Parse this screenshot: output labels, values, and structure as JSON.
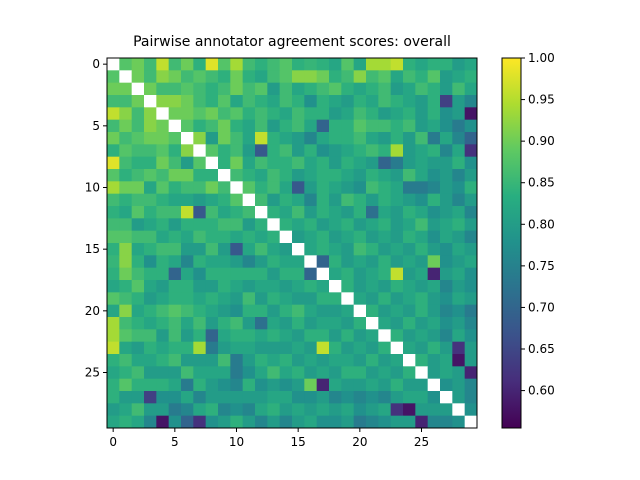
{
  "chart_data": {
    "type": "heatmap",
    "title": "Pairwise annotator agreement scores: overall",
    "xlabel": "",
    "ylabel": "",
    "size": 30,
    "x_ticks": [
      0,
      5,
      10,
      15,
      20,
      25
    ],
    "y_ticks": [
      0,
      5,
      10,
      15,
      20,
      25
    ],
    "colormap": "viridis",
    "color_range": [
      0.555,
      1.0
    ],
    "colorbar_ticks": [
      0.6,
      0.65,
      0.7,
      0.75,
      0.8,
      0.85,
      0.9,
      0.95,
      1.0
    ],
    "colorbar_tick_labels": [
      "0.60",
      "0.65",
      "0.70",
      "0.75",
      "0.80",
      "0.85",
      "0.90",
      "0.95",
      "1.00"
    ],
    "diagonal": "missing",
    "grid": false,
    "values": [
      [
        null,
        0.88,
        0.9,
        0.86,
        0.96,
        0.86,
        0.9,
        0.84,
        0.98,
        0.88,
        0.94,
        0.86,
        0.84,
        0.86,
        0.88,
        0.84,
        0.85,
        0.84,
        0.82,
        0.88,
        0.82,
        0.94,
        0.94,
        0.96,
        0.84,
        0.82,
        0.84,
        0.84,
        0.8,
        0.82
      ],
      [
        0.88,
        null,
        0.9,
        0.86,
        0.92,
        0.9,
        0.86,
        0.88,
        0.86,
        0.84,
        0.9,
        0.84,
        0.82,
        0.86,
        0.88,
        0.92,
        0.92,
        0.9,
        0.84,
        0.86,
        0.92,
        0.86,
        0.88,
        0.82,
        0.86,
        0.84,
        0.88,
        0.8,
        0.82,
        0.84
      ],
      [
        0.9,
        0.9,
        null,
        0.9,
        0.86,
        0.86,
        0.88,
        0.86,
        0.84,
        0.86,
        0.9,
        0.86,
        0.88,
        0.8,
        0.86,
        0.82,
        0.84,
        0.86,
        0.88,
        0.84,
        0.82,
        0.84,
        0.86,
        0.8,
        0.82,
        0.86,
        0.84,
        0.8,
        0.86,
        0.82
      ],
      [
        0.86,
        0.86,
        0.9,
        null,
        0.92,
        0.92,
        0.9,
        0.86,
        0.84,
        0.88,
        0.82,
        0.86,
        0.84,
        0.82,
        0.86,
        0.84,
        0.78,
        0.84,
        0.82,
        0.8,
        0.84,
        0.82,
        0.86,
        0.84,
        0.82,
        0.8,
        0.84,
        0.64,
        0.8,
        0.76
      ],
      [
        0.96,
        0.92,
        0.86,
        0.92,
        null,
        0.9,
        0.9,
        0.88,
        0.9,
        0.86,
        0.88,
        0.84,
        0.86,
        0.84,
        0.82,
        0.86,
        0.84,
        0.84,
        0.8,
        0.82,
        0.86,
        0.84,
        0.8,
        0.82,
        0.84,
        0.8,
        0.84,
        0.78,
        0.8,
        0.58
      ],
      [
        0.86,
        0.9,
        0.86,
        0.92,
        0.9,
        null,
        0.88,
        0.84,
        0.86,
        0.9,
        0.84,
        0.82,
        0.86,
        0.8,
        0.84,
        0.86,
        0.82,
        0.7,
        0.84,
        0.84,
        0.88,
        0.86,
        0.86,
        0.84,
        0.86,
        0.8,
        0.82,
        0.78,
        0.74,
        0.78
      ],
      [
        0.9,
        0.86,
        0.88,
        0.9,
        0.9,
        0.88,
        null,
        0.92,
        0.8,
        0.9,
        0.86,
        0.82,
        0.96,
        0.84,
        0.82,
        0.8,
        0.76,
        0.82,
        0.84,
        0.84,
        0.86,
        0.82,
        0.8,
        0.84,
        0.8,
        0.86,
        0.74,
        0.82,
        0.76,
        0.7
      ],
      [
        0.84,
        0.88,
        0.86,
        0.86,
        0.88,
        0.84,
        0.92,
        null,
        0.88,
        0.84,
        0.86,
        0.8,
        0.68,
        0.84,
        0.86,
        0.8,
        0.84,
        0.78,
        0.8,
        0.82,
        0.84,
        0.86,
        0.84,
        0.94,
        0.8,
        0.82,
        0.84,
        0.76,
        0.82,
        0.62
      ],
      [
        0.98,
        0.86,
        0.84,
        0.84,
        0.9,
        0.86,
        0.8,
        0.88,
        null,
        0.84,
        0.9,
        0.82,
        0.86,
        0.84,
        0.84,
        0.86,
        0.82,
        0.84,
        0.8,
        0.84,
        0.82,
        0.8,
        0.7,
        0.74,
        0.8,
        0.82,
        0.8,
        0.8,
        0.84,
        0.78
      ],
      [
        0.88,
        0.84,
        0.86,
        0.88,
        0.86,
        0.9,
        0.9,
        0.84,
        0.84,
        null,
        0.86,
        0.84,
        0.82,
        0.86,
        0.84,
        0.8,
        0.82,
        0.84,
        0.84,
        0.82,
        0.8,
        0.84,
        0.82,
        0.8,
        0.86,
        0.82,
        0.78,
        0.8,
        0.76,
        0.8
      ],
      [
        0.94,
        0.9,
        0.9,
        0.82,
        0.88,
        0.84,
        0.86,
        0.86,
        0.9,
        0.86,
        null,
        0.88,
        0.84,
        0.86,
        0.82,
        0.68,
        0.8,
        0.84,
        0.82,
        0.8,
        0.78,
        0.86,
        0.84,
        0.82,
        0.74,
        0.74,
        0.76,
        0.8,
        0.78,
        0.84
      ],
      [
        0.86,
        0.84,
        0.86,
        0.86,
        0.84,
        0.82,
        0.82,
        0.8,
        0.82,
        0.84,
        0.88,
        null,
        0.86,
        0.8,
        0.84,
        0.82,
        0.76,
        0.84,
        0.8,
        0.86,
        0.84,
        0.8,
        0.84,
        0.82,
        0.8,
        0.78,
        0.84,
        0.8,
        0.76,
        0.8
      ],
      [
        0.84,
        0.82,
        0.88,
        0.84,
        0.86,
        0.86,
        0.96,
        0.68,
        0.86,
        0.82,
        0.84,
        0.86,
        null,
        0.84,
        0.82,
        0.86,
        0.8,
        0.84,
        0.82,
        0.8,
        0.84,
        0.72,
        0.82,
        0.8,
        0.84,
        0.82,
        0.78,
        0.8,
        0.82,
        0.76
      ],
      [
        0.86,
        0.86,
        0.8,
        0.82,
        0.84,
        0.8,
        0.84,
        0.84,
        0.84,
        0.86,
        0.86,
        0.8,
        0.84,
        null,
        0.84,
        0.82,
        0.84,
        0.8,
        0.82,
        0.84,
        0.8,
        0.82,
        0.84,
        0.8,
        0.82,
        0.86,
        0.8,
        0.82,
        0.84,
        0.8
      ],
      [
        0.88,
        0.88,
        0.86,
        0.86,
        0.82,
        0.84,
        0.82,
        0.86,
        0.84,
        0.84,
        0.82,
        0.84,
        0.82,
        0.84,
        null,
        0.8,
        0.82,
        0.84,
        0.8,
        0.82,
        0.84,
        0.8,
        0.82,
        0.8,
        0.84,
        0.82,
        0.78,
        0.82,
        0.8,
        0.76
      ],
      [
        0.84,
        0.92,
        0.82,
        0.84,
        0.86,
        0.86,
        0.8,
        0.8,
        0.86,
        0.8,
        0.68,
        0.82,
        0.86,
        0.82,
        0.8,
        null,
        0.82,
        0.84,
        0.82,
        0.8,
        0.86,
        0.84,
        0.8,
        0.82,
        0.8,
        0.84,
        0.8,
        0.78,
        0.82,
        0.8
      ],
      [
        0.85,
        0.92,
        0.84,
        0.78,
        0.84,
        0.82,
        0.76,
        0.84,
        0.82,
        0.82,
        0.8,
        0.76,
        0.8,
        0.84,
        0.82,
        0.82,
        null,
        0.7,
        0.84,
        0.8,
        0.82,
        0.8,
        0.84,
        0.8,
        0.82,
        0.8,
        0.9,
        0.78,
        0.8,
        0.82
      ],
      [
        0.84,
        0.9,
        0.86,
        0.84,
        0.84,
        0.7,
        0.82,
        0.78,
        0.84,
        0.84,
        0.84,
        0.84,
        0.84,
        0.8,
        0.84,
        0.84,
        0.7,
        null,
        0.82,
        0.84,
        0.8,
        0.82,
        0.84,
        0.96,
        0.8,
        0.82,
        0.6,
        0.8,
        0.82,
        0.78
      ],
      [
        0.82,
        0.84,
        0.88,
        0.82,
        0.8,
        0.84,
        0.84,
        0.8,
        0.8,
        0.84,
        0.82,
        0.8,
        0.82,
        0.82,
        0.8,
        0.82,
        0.84,
        0.82,
        null,
        0.84,
        0.8,
        0.82,
        0.8,
        0.84,
        0.82,
        0.8,
        0.82,
        0.76,
        0.8,
        0.78
      ],
      [
        0.88,
        0.86,
        0.84,
        0.8,
        0.82,
        0.84,
        0.84,
        0.82,
        0.84,
        0.82,
        0.8,
        0.86,
        0.8,
        0.84,
        0.82,
        0.8,
        0.8,
        0.84,
        0.84,
        null,
        0.82,
        0.8,
        0.84,
        0.8,
        0.82,
        0.84,
        0.8,
        0.78,
        0.82,
        0.8
      ],
      [
        0.82,
        0.92,
        0.82,
        0.84,
        0.86,
        0.88,
        0.86,
        0.84,
        0.82,
        0.8,
        0.78,
        0.84,
        0.84,
        0.8,
        0.84,
        0.86,
        0.82,
        0.8,
        0.8,
        0.82,
        null,
        0.84,
        0.8,
        0.82,
        0.8,
        0.84,
        0.8,
        0.76,
        0.78,
        0.74
      ],
      [
        0.94,
        0.86,
        0.84,
        0.82,
        0.84,
        0.86,
        0.82,
        0.86,
        0.8,
        0.84,
        0.86,
        0.8,
        0.72,
        0.82,
        0.8,
        0.84,
        0.8,
        0.82,
        0.82,
        0.8,
        0.84,
        null,
        0.82,
        0.8,
        0.84,
        0.8,
        0.82,
        0.78,
        0.8,
        0.76
      ],
      [
        0.94,
        0.88,
        0.86,
        0.86,
        0.8,
        0.86,
        0.8,
        0.84,
        0.7,
        0.82,
        0.84,
        0.84,
        0.82,
        0.84,
        0.82,
        0.8,
        0.84,
        0.84,
        0.8,
        0.84,
        0.8,
        0.82,
        null,
        0.84,
        0.8,
        0.82,
        0.8,
        0.76,
        0.82,
        0.78
      ],
      [
        0.96,
        0.82,
        0.8,
        0.84,
        0.82,
        0.84,
        0.84,
        0.94,
        0.74,
        0.8,
        0.82,
        0.82,
        0.8,
        0.8,
        0.8,
        0.82,
        0.8,
        0.96,
        0.84,
        0.8,
        0.82,
        0.8,
        0.84,
        null,
        0.82,
        0.8,
        0.84,
        0.8,
        0.62,
        0.8
      ],
      [
        0.84,
        0.86,
        0.82,
        0.82,
        0.84,
        0.86,
        0.8,
        0.8,
        0.8,
        0.86,
        0.74,
        0.8,
        0.84,
        0.82,
        0.84,
        0.8,
        0.82,
        0.8,
        0.82,
        0.82,
        0.8,
        0.84,
        0.8,
        0.82,
        null,
        0.84,
        0.8,
        0.82,
        0.58,
        0.8
      ],
      [
        0.82,
        0.84,
        0.86,
        0.8,
        0.8,
        0.8,
        0.86,
        0.82,
        0.82,
        0.82,
        0.74,
        0.78,
        0.82,
        0.86,
        0.82,
        0.84,
        0.8,
        0.82,
        0.8,
        0.84,
        0.84,
        0.8,
        0.82,
        0.8,
        0.84,
        null,
        0.8,
        0.82,
        0.8,
        0.6
      ],
      [
        0.84,
        0.88,
        0.84,
        0.84,
        0.84,
        0.82,
        0.74,
        0.84,
        0.8,
        0.78,
        0.76,
        0.84,
        0.78,
        0.8,
        0.78,
        0.8,
        0.9,
        0.6,
        0.82,
        0.8,
        0.8,
        0.82,
        0.8,
        0.84,
        0.8,
        0.8,
        null,
        0.78,
        0.8,
        0.76
      ],
      [
        0.84,
        0.8,
        0.8,
        0.64,
        0.78,
        0.78,
        0.82,
        0.76,
        0.8,
        0.8,
        0.8,
        0.8,
        0.8,
        0.82,
        0.82,
        0.78,
        0.78,
        0.8,
        0.76,
        0.78,
        0.76,
        0.78,
        0.76,
        0.8,
        0.82,
        0.82,
        0.78,
        null,
        0.8,
        0.76
      ],
      [
        0.8,
        0.82,
        0.86,
        0.8,
        0.8,
        0.74,
        0.76,
        0.82,
        0.84,
        0.76,
        0.78,
        0.76,
        0.82,
        0.84,
        0.8,
        0.82,
        0.8,
        0.82,
        0.8,
        0.82,
        0.78,
        0.8,
        0.82,
        0.62,
        0.58,
        0.8,
        0.8,
        0.8,
        null,
        0.78
      ],
      [
        0.82,
        0.84,
        0.82,
        0.76,
        0.58,
        0.78,
        0.7,
        0.62,
        0.78,
        0.8,
        0.84,
        0.8,
        0.76,
        0.8,
        0.76,
        0.8,
        0.82,
        0.78,
        0.78,
        0.8,
        0.74,
        0.76,
        0.78,
        0.8,
        0.8,
        0.6,
        0.76,
        0.76,
        0.78,
        null
      ]
    ]
  }
}
